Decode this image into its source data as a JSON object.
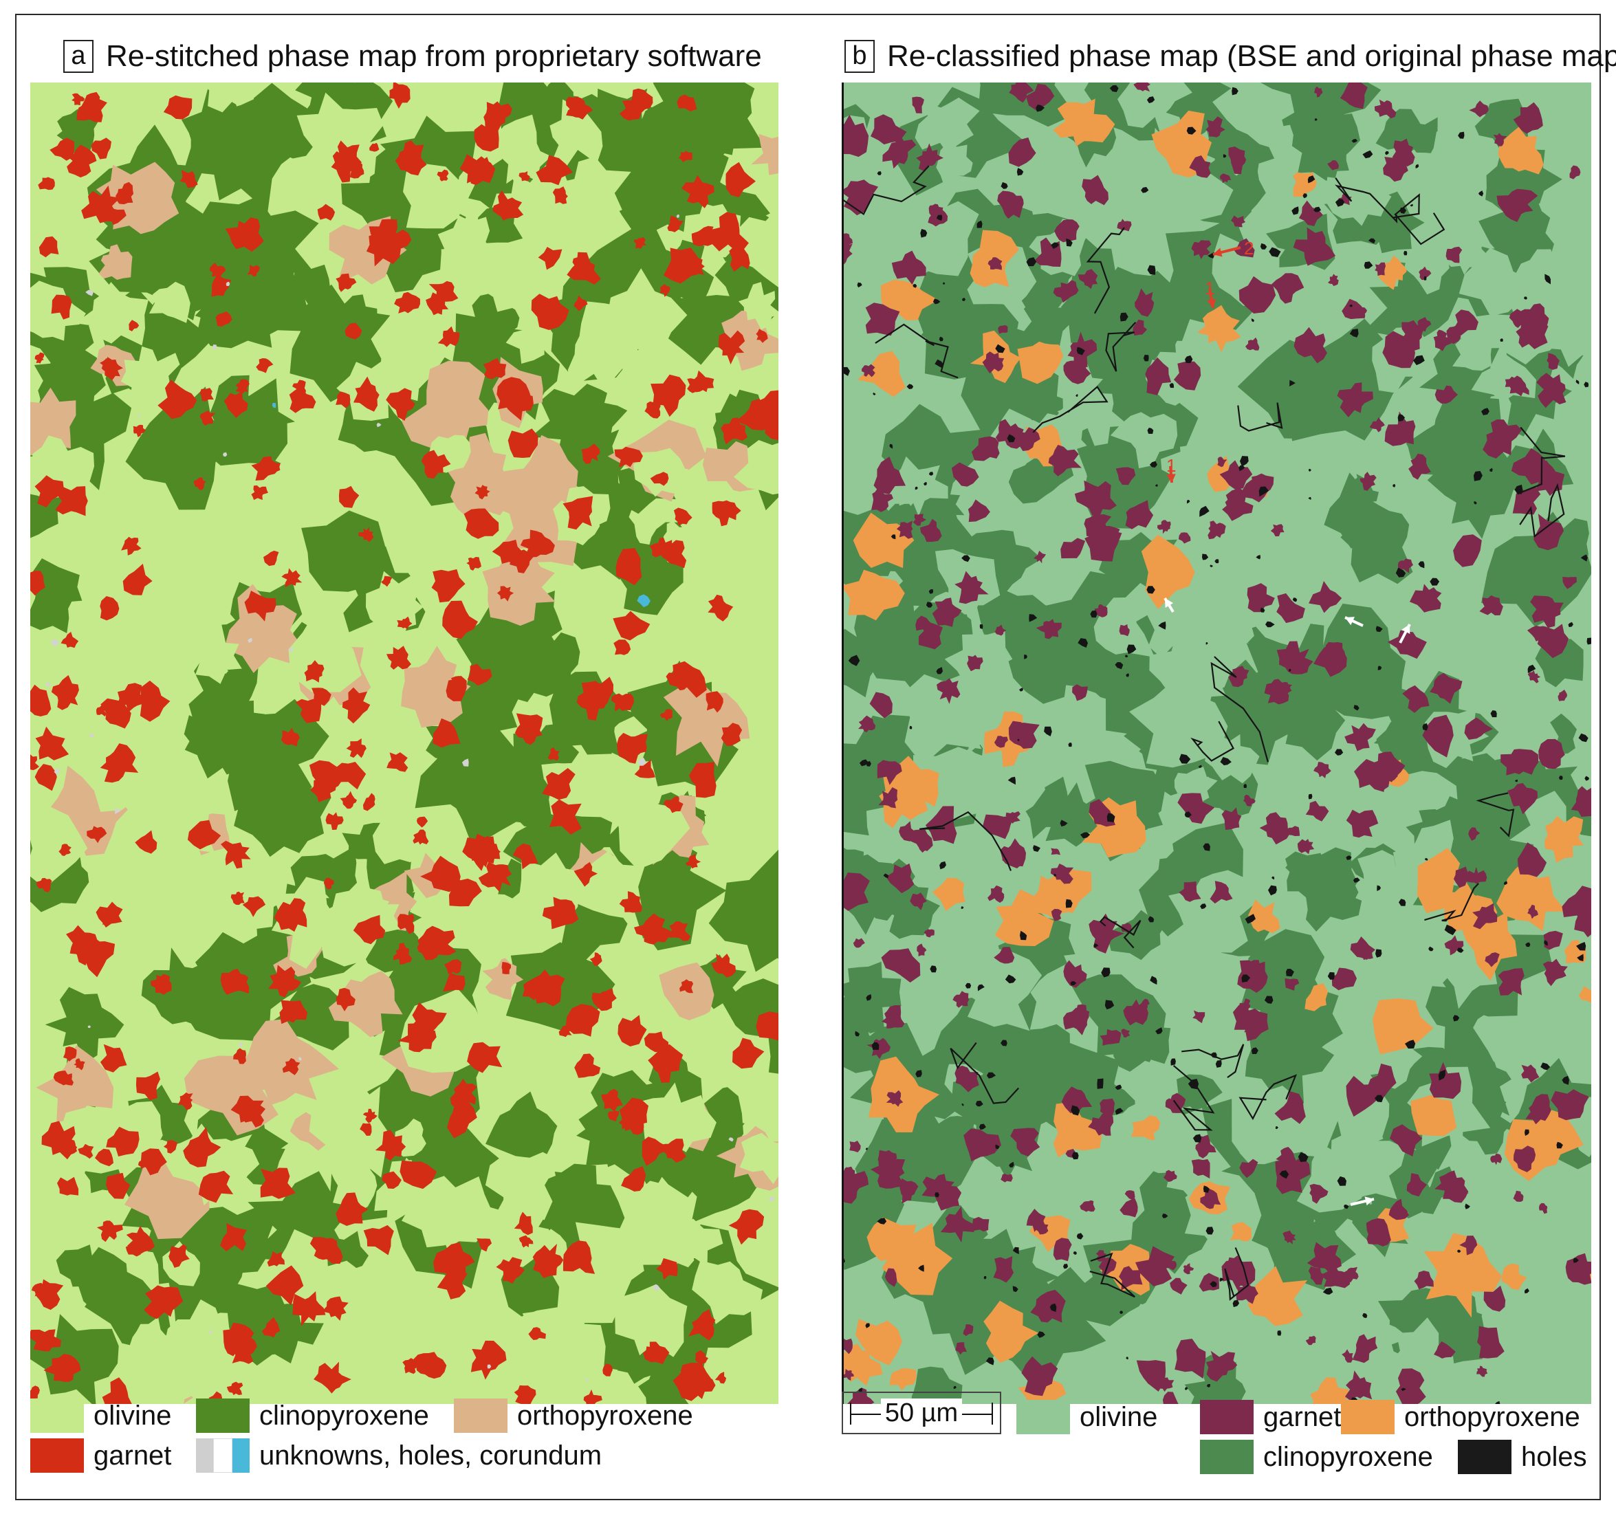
{
  "panel_a": {
    "letter": "a",
    "title": "Re-stitched phase map from proprietary software",
    "colors": {
      "olivine": "#c5ea8c",
      "clinopyroxene": "#4f8a25",
      "orthopyroxene": "#ddb48a",
      "garnet": "#d42d16",
      "unknown": "#d3d3d3",
      "hole": "#ffffff",
      "corundum": "#4ab8d8"
    },
    "legend": [
      {
        "label": "olivine",
        "colors": [
          "#c5ea8c"
        ]
      },
      {
        "label": "clinopyroxene",
        "colors": [
          "#4f8a25"
        ]
      },
      {
        "label": "orthopyroxene",
        "colors": [
          "#ddb48a"
        ]
      },
      {
        "label": "garnet",
        "colors": [
          "#d42d16"
        ]
      },
      {
        "label": "unknowns, holes, corundum",
        "colors": [
          "#cfcfcf",
          "#ffffff",
          "#4ab8d8"
        ]
      }
    ]
  },
  "panel_b": {
    "letter": "b",
    "title": "Re-classified phase map (BSE and original phase map)",
    "colors": {
      "olivine": "#92c896",
      "clinopyroxene": "#4c8a4f",
      "orthopyroxene": "#ee9c4a",
      "garnet": "#7d2a4d",
      "holes": "#151515"
    },
    "annotations": [
      "2",
      "1",
      "1"
    ],
    "scale_bar": "50 µm",
    "legend": [
      {
        "label": "olivine",
        "colors": [
          "#92c896"
        ]
      },
      {
        "label": "garnet",
        "colors": [
          "#7d2a4d"
        ]
      },
      {
        "label": "orthopyroxene",
        "colors": [
          "#ee9c4a"
        ]
      },
      {
        "label": "clinopyroxene",
        "colors": [
          "#4c8a4f"
        ]
      },
      {
        "label": "holes",
        "colors": [
          "#1a1a1a"
        ]
      }
    ]
  }
}
